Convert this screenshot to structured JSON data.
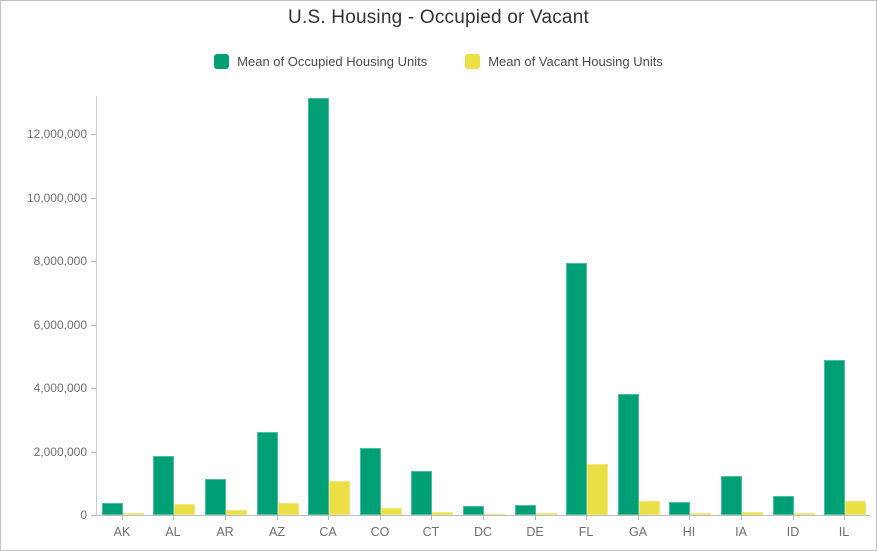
{
  "title": "U.S. Housing - Occupied or Vacant",
  "legend": [
    {
      "label": "Mean of Occupied Housing Units",
      "color": "#00a077"
    },
    {
      "label": "Mean of Vacant Housing Units",
      "color": "#ebdf45"
    }
  ],
  "colors": {
    "occupied": "#00a077",
    "vacant": "#ebdf45",
    "title_text": "#323232",
    "legend_text": "#4a4a4a",
    "axis_text": "#6e6e6e",
    "axis_line": "#c4c4c4"
  },
  "chart_data": {
    "type": "bar",
    "title": "U.S. Housing - Occupied or Vacant",
    "categories": [
      "AK",
      "AL",
      "AR",
      "AZ",
      "CA",
      "CO",
      "CT",
      "DC",
      "DE",
      "FL",
      "GA",
      "HI",
      "IA",
      "ID",
      "IL"
    ],
    "series": [
      {
        "key": "occupied",
        "name": "Mean of Occupied Housing Units",
        "color": "#00a077",
        "values": [
          380000,
          1860000,
          1130000,
          2610000,
          13130000,
          2110000,
          1380000,
          290000,
          325000,
          7940000,
          3810000,
          410000,
          1230000,
          610000,
          4870000
        ]
      },
      {
        "key": "vacant",
        "name": "Mean of Vacant Housing Units",
        "color": "#ebdf45",
        "values": [
          50000,
          350000,
          170000,
          370000,
          1070000,
          220000,
          110000,
          30000,
          55000,
          1610000,
          450000,
          50000,
          105000,
          75000,
          450000
        ]
      }
    ],
    "xlabel": "",
    "ylabel": "",
    "ylim": [
      0,
      13200000
    ],
    "y_ticks": [
      0,
      2000000,
      4000000,
      6000000,
      8000000,
      10000000,
      12000000
    ],
    "grid": false,
    "legend_position": "top"
  }
}
